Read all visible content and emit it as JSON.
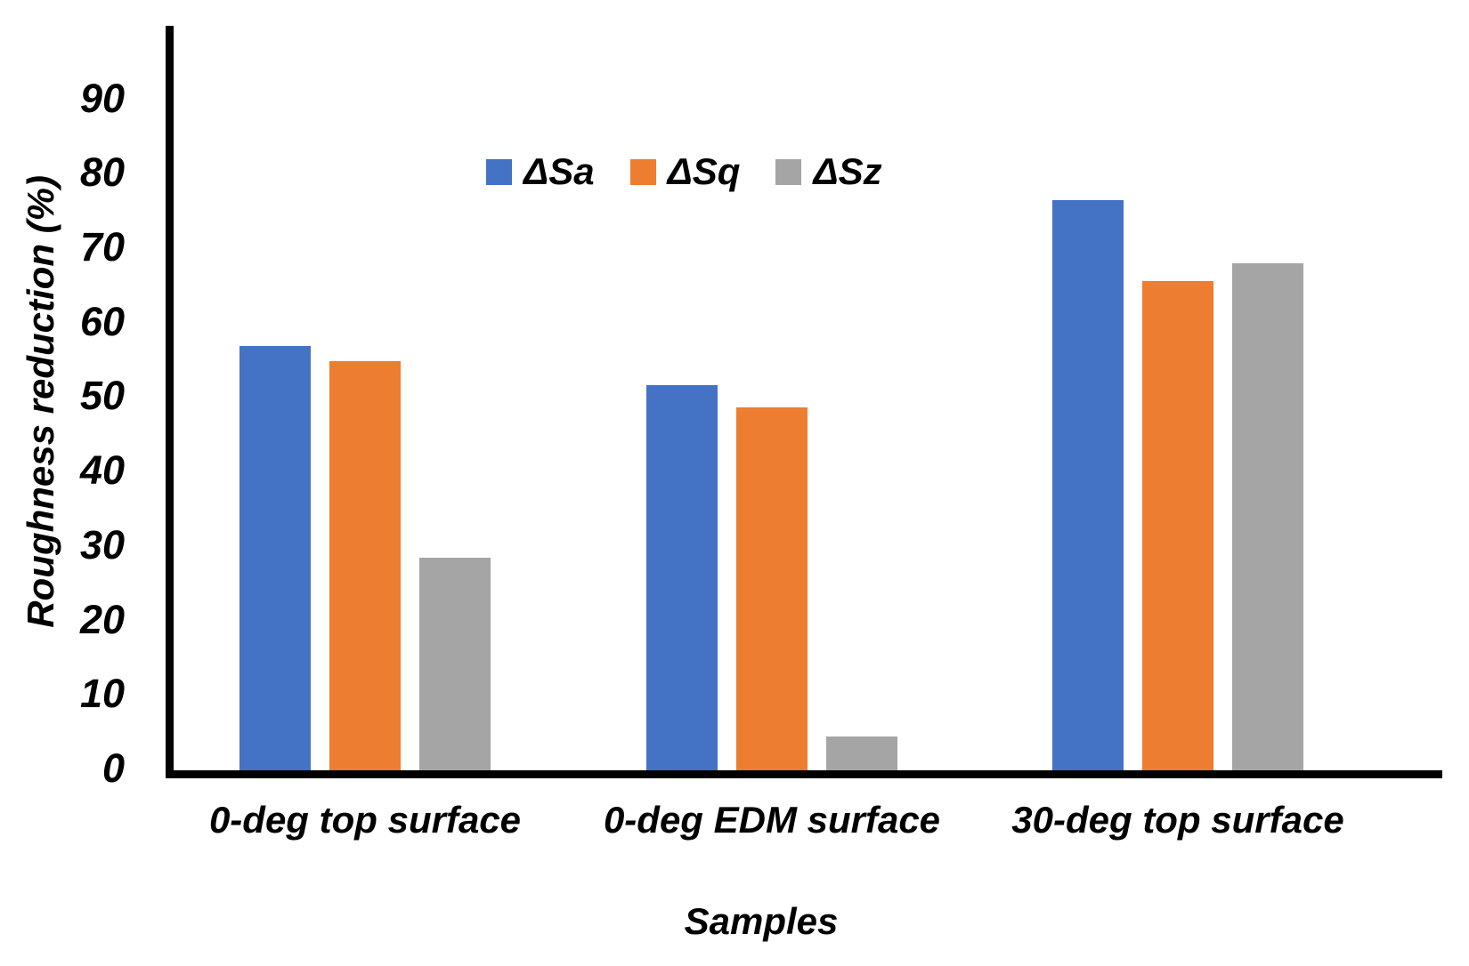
{
  "figure": {
    "background": "#FFFFFF"
  },
  "chart_data": {
    "type": "bar",
    "title": "",
    "xlabel": "Samples",
    "ylabel": "Roughness reduction (%)",
    "ylim": [
      0,
      90
    ],
    "yticks": [
      0,
      10,
      20,
      30,
      40,
      50,
      60,
      70,
      80,
      90
    ],
    "grid": false,
    "legend_position": "top-center",
    "axis_color": "#000000",
    "text_color": "#000000",
    "categories": [
      "0-deg top surface",
      "0-deg EDM surface",
      "30-deg top surface"
    ],
    "series": [
      {
        "name": "ΔSa",
        "color": "#4472C4",
        "values": [
          57.0,
          51.7,
          76.6
        ]
      },
      {
        "name": "ΔSq",
        "color": "#ED7D31",
        "values": [
          55.0,
          48.7,
          65.7
        ]
      },
      {
        "name": "ΔSz",
        "color": "#A5A5A5",
        "values": [
          28.6,
          4.5,
          68.1
        ]
      }
    ]
  }
}
